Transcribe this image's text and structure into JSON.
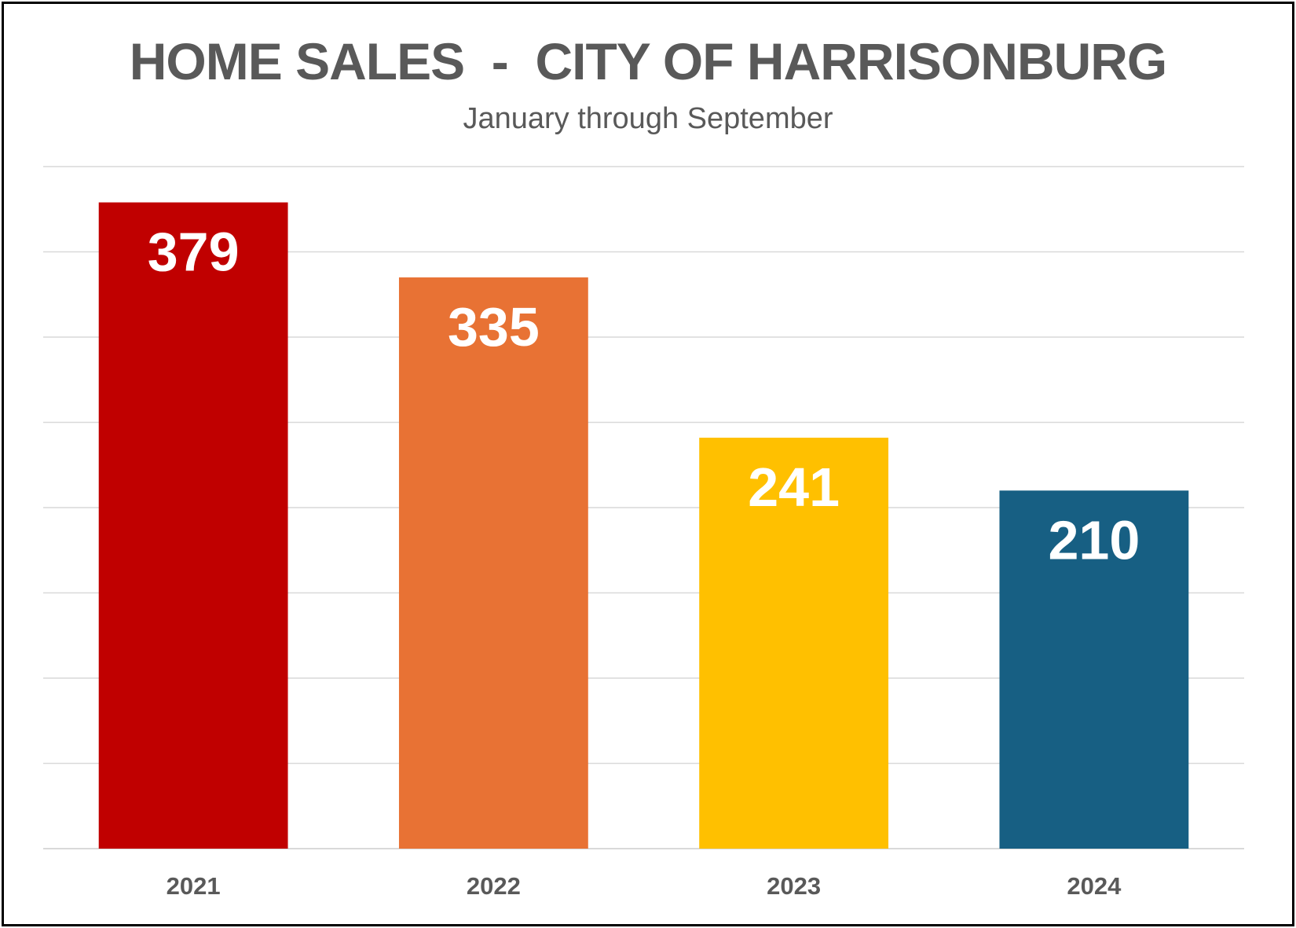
{
  "chart_data": {
    "type": "bar",
    "title": "HOME SALES  -  CITY OF HARRISONBURG",
    "subtitle": "January through September",
    "xlabel": "",
    "ylabel": "",
    "categories": [
      "2021",
      "2022",
      "2023",
      "2024"
    ],
    "values": [
      379,
      335,
      241,
      210
    ],
    "colors": [
      "#C00000",
      "#E87234",
      "#FFC000",
      "#175F83"
    ],
    "ylim": [
      0,
      400
    ],
    "grid": true,
    "legend": "none",
    "data_labels": true,
    "y_tick_labels_visible": false
  },
  "style": {
    "grid_color": "#D9D9D9",
    "text_color": "#595959",
    "label_color": "#FFFFFF",
    "border_color": "#000000"
  }
}
